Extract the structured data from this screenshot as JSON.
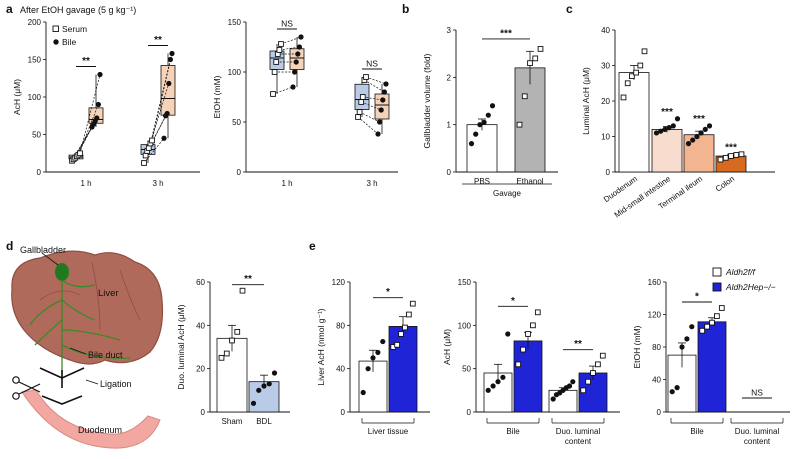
{
  "figure": {
    "panel_letters": {
      "a": "a",
      "b": "b",
      "c": "c",
      "d": "d",
      "e": "e"
    },
    "panel_a_header": "After EtOH gavage (5 g kg⁻¹)",
    "panel_d_labels": {
      "gallbladder": "Gallbladder",
      "liver": "Liver",
      "bile_duct": "Bile duct",
      "ligation": "Ligation",
      "duodenum": "Duodenum"
    },
    "colors": {
      "serum_box": "#b9cbe6",
      "bile_box": "#f6d3b8",
      "gray_bar": "#b3b3b3",
      "blue_bar": "#1f24d6",
      "c_mid": "#f8dccd",
      "c_term": "#f2b58f",
      "c_colon": "#d66a1f",
      "liver_fill": "#b06a5c",
      "duct": "#3a8a2a"
    }
  },
  "chart_data": [
    {
      "id": "a1",
      "type": "box-paired",
      "title": "",
      "ylabel": "AcH (μM)",
      "xlabel": "",
      "ylim": [
        0,
        200
      ],
      "yticks": [
        0,
        50,
        100,
        150,
        200
      ],
      "categories": [
        "1 h",
        "3 h"
      ],
      "legend": [
        "Serum",
        "Bile"
      ],
      "legend_position": "top-left",
      "series": [
        {
          "name": "Serum",
          "values": [
            [
              15,
              17,
              19,
              21,
              23,
              25
            ],
            [
              12,
              22,
              28,
              32,
              38,
              42
            ]
          ]
        },
        {
          "name": "Bile",
          "values": [
            [
              60,
              64,
              68,
              72,
              90,
              130
            ],
            [
              45,
              75,
              78,
              118,
              150,
              158
            ]
          ]
        }
      ],
      "significance": [
        "**",
        "**"
      ]
    },
    {
      "id": "a2",
      "type": "box-paired",
      "title": "",
      "ylabel": "EtOH (mM)",
      "xlabel": "",
      "ylim": [
        0,
        150
      ],
      "yticks": [
        0,
        50,
        100,
        150
      ],
      "categories": [
        "1 h",
        "3 h"
      ],
      "series": [
        {
          "name": "Serum",
          "values": [
            [
              78,
              100,
              110,
              118,
              122,
              128
            ],
            [
              55,
              60,
              70,
              75,
              92,
              95
            ]
          ]
        },
        {
          "name": "Bile",
          "values": [
            [
              85,
              100,
              110,
              118,
              125,
              135
            ],
            [
              38,
              50,
              62,
              72,
              80,
              88
            ]
          ]
        }
      ],
      "significance": [
        "NS",
        "NS"
      ]
    },
    {
      "id": "b",
      "type": "bar",
      "title": "",
      "ylabel": "Gallbladder volume (fold)",
      "ylim": [
        0,
        3
      ],
      "yticks": [
        0,
        1,
        2,
        3
      ],
      "categories": [
        "PBS",
        "Ethanol"
      ],
      "xgroup_label": "Gavage",
      "values": [
        1.0,
        2.2
      ],
      "errors": [
        0.12,
        0.35
      ],
      "points": [
        [
          0.6,
          0.8,
          1.0,
          1.05,
          1.2,
          1.4
        ],
        [
          1.0,
          1.6,
          2.3,
          2.4,
          2.6
        ]
      ],
      "significance": [
        "***"
      ]
    },
    {
      "id": "c",
      "type": "bar",
      "title": "",
      "ylabel": "Luminal AcH (μM)",
      "ylim": [
        0,
        40
      ],
      "yticks": [
        0,
        10,
        20,
        30,
        40
      ],
      "categories": [
        "Duodenum",
        "Mid-small intestine",
        "Terminal ileum",
        "Colon"
      ],
      "values": [
        28,
        12,
        10.5,
        4.5
      ],
      "errors": [
        2.0,
        0.8,
        1.0,
        0.5
      ],
      "points": [
        [
          21,
          25,
          27,
          28,
          30,
          34
        ],
        [
          11,
          11.5,
          12,
          12.5,
          13,
          15
        ],
        [
          8,
          9,
          10,
          11,
          12,
          13
        ],
        [
          3.5,
          4,
          4.5,
          4.8,
          5
        ]
      ],
      "significance": [
        "",
        "***",
        "***",
        "***"
      ]
    },
    {
      "id": "d",
      "type": "bar",
      "title": "",
      "ylabel": "Duo. luminal AcH (μM)",
      "ylim": [
        0,
        60
      ],
      "yticks": [
        0,
        20,
        40,
        60
      ],
      "categories": [
        "Sham",
        "BDL"
      ],
      "values": [
        34,
        14
      ],
      "errors": [
        6,
        3
      ],
      "points": [
        [
          25,
          27,
          33,
          37,
          56
        ],
        [
          4,
          10,
          12,
          13,
          18
        ]
      ],
      "significance": [
        "**"
      ]
    },
    {
      "id": "e1",
      "type": "bar",
      "title": "",
      "ylabel": "Liver AcH (nmol g⁻¹)",
      "ylim": [
        0,
        120
      ],
      "yticks": [
        0,
        40,
        80,
        120
      ],
      "categories": [
        "Liver tissue"
      ],
      "series": [
        {
          "name": "Aldh2f/f",
          "values": [
            47
          ],
          "errors": [
            10
          ],
          "points": [
            [
              18,
              40,
              50,
              55,
              65
            ]
          ]
        },
        {
          "name": "Aldh2Hep−/−",
          "values": [
            79
          ],
          "errors": [
            9
          ],
          "points": [
            [
              60,
              62,
              72,
              78,
              90,
              100
            ]
          ]
        }
      ],
      "significance": [
        "*"
      ]
    },
    {
      "id": "e2",
      "type": "bar",
      "title": "",
      "ylabel": "AcH (μM)",
      "ylim": [
        0,
        150
      ],
      "yticks": [
        0,
        50,
        100,
        150
      ],
      "categories": [
        "Bile",
        "Duo. luminal content"
      ],
      "series": [
        {
          "name": "Aldh2f/f",
          "values": [
            45,
            25
          ],
          "errors": [
            10,
            3
          ],
          "points": [
            [
              25,
              30,
              35,
              40,
              90
            ],
            [
              15,
              20,
              22,
              25,
              28,
              30,
              35
            ]
          ]
        },
        {
          "name": "Aldh2Hep−/−",
          "values": [
            82,
            45
          ],
          "errors": [
            10,
            8
          ],
          "points": [
            [
              55,
              72,
              90,
              100,
              115
            ],
            [
              25,
              35,
              45,
              55,
              65
            ]
          ]
        }
      ],
      "significance": [
        "*",
        "**"
      ]
    },
    {
      "id": "e3",
      "type": "bar",
      "title": "",
      "ylabel": "EtOH (mM)",
      "ylim": [
        0,
        160
      ],
      "yticks": [
        0,
        40,
        80,
        120,
        160
      ],
      "categories": [
        "Bile",
        "Duo. luminal content"
      ],
      "legend": [
        "Aldh2f/f",
        "Aldh2Hep−/−"
      ],
      "legend_position": "top-right",
      "series": [
        {
          "name": "Aldh2f/f",
          "values": [
            70,
            0
          ],
          "errors": [
            15,
            0
          ],
          "points": [
            [
              25,
              30,
              80,
              90,
              105
            ],
            []
          ]
        },
        {
          "name": "Aldh2Hep−/−",
          "values": [
            111,
            0
          ],
          "errors": [
            5,
            0
          ],
          "points": [
            [
              100,
              105,
              110,
              118,
              128
            ],
            []
          ]
        }
      ],
      "significance": [
        "*",
        "NS"
      ]
    }
  ]
}
